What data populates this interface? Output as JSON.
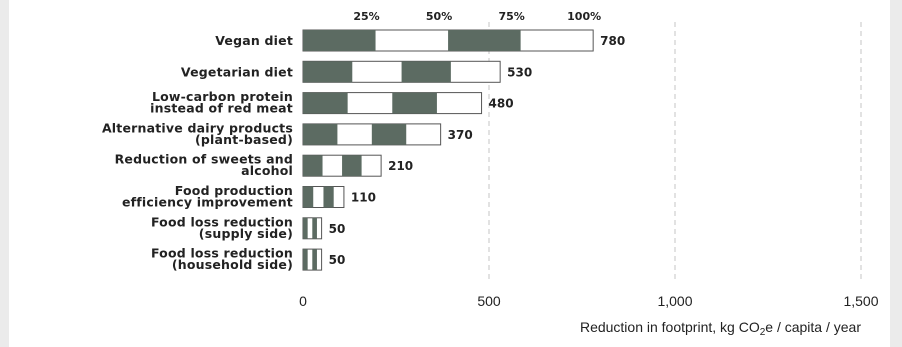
{
  "chart_data": {
    "type": "bar",
    "orientation": "horizontal",
    "categories": [
      [
        "Vegan diet"
      ],
      [
        "Vegetarian diet"
      ],
      [
        "Low-carbon protein",
        "instead of red meat"
      ],
      [
        "Alternative dairy products",
        "(plant-based)"
      ],
      [
        "Reduction of sweets and",
        "alcohol"
      ],
      [
        "Food production",
        "efficiency improvement"
      ],
      [
        "Food loss reduction",
        "(supply side)"
      ],
      [
        "Food loss reduction",
        "(household side)"
      ]
    ],
    "values": [
      780,
      530,
      480,
      370,
      210,
      110,
      50,
      50
    ],
    "value_labels": [
      "780",
      "530",
      "480",
      "370",
      "210",
      "110",
      "50",
      "50"
    ],
    "segment_legend": [
      "25%",
      "50%",
      "75%",
      "100%"
    ],
    "x_ticks": [
      0,
      500,
      1000,
      1500
    ],
    "x_tick_labels": [
      "0",
      "500",
      "1,000",
      "1,500"
    ],
    "xlim": [
      0,
      1500
    ],
    "xlabel_parts": [
      "Reduction in footprint, kg CO",
      "2",
      "e / capita / year"
    ],
    "grid": "vertical dashed",
    "colors": {
      "dark": "#5c6b62",
      "light": "#ffffff",
      "outline": "#555555",
      "grid": "#c4c4c4",
      "text": "#222222"
    }
  }
}
